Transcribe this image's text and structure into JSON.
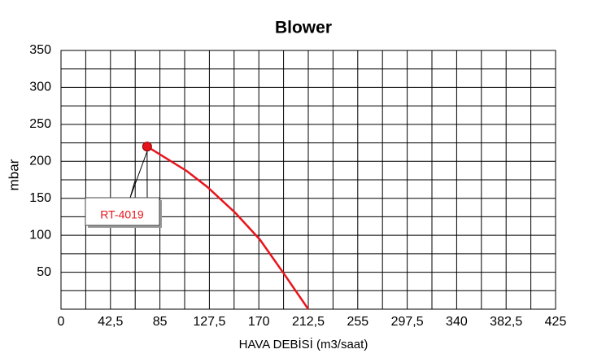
{
  "chart_data": {
    "type": "line",
    "title": "Blower",
    "xlabel": "HAVA DEBİSİ (m3/saat)",
    "ylabel": "mbar",
    "x": [
      74,
      108,
      126,
      150,
      171,
      192,
      212.5
    ],
    "series": [
      {
        "name": "RT-4019",
        "color": "#e8141c",
        "values": [
          220,
          187,
          165,
          130,
          94,
          47,
          0
        ]
      }
    ],
    "xlim": [
      0,
      425
    ],
    "ylim": [
      0,
      350
    ],
    "xticks": [
      0,
      {
        "value": 42.5,
        "label": "42,5"
      },
      85,
      {
        "value": 127.5,
        "label": "127,5"
      },
      170,
      {
        "value": 212.5,
        "label": "212,5"
      },
      255,
      {
        "value": 297.5,
        "label": "297,5"
      },
      340,
      {
        "value": 382.5,
        "label": "382,5"
      },
      425
    ],
    "xminorticks": [
      21.25,
      63.75,
      106.25,
      148.75,
      191.25,
      233.75,
      276.25,
      318.75,
      361.25,
      403.75
    ],
    "yticks": [
      50,
      100,
      150,
      200,
      250,
      300,
      350
    ],
    "yminorticks": [
      25,
      75,
      125,
      175,
      225,
      275,
      325
    ],
    "grid": true
  }
}
